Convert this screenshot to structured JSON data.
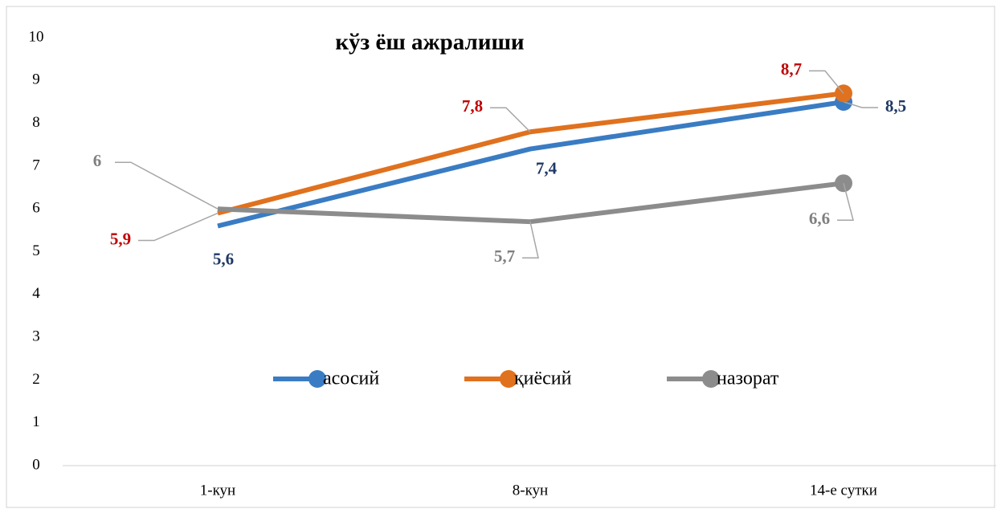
{
  "chart_data": {
    "type": "line",
    "title": "кўз ёш ажралиши",
    "categories": [
      "1-кун",
      "8-кун",
      "14-е сутки"
    ],
    "series": [
      {
        "name": "асосий",
        "color": "#3a7cc3",
        "label_color": "#1f3864",
        "values": [
          5.6,
          7.4,
          8.5
        ],
        "value_labels": [
          "5,6",
          "7,4",
          "8,5"
        ]
      },
      {
        "name": "қиёсий",
        "color": "#e0711e",
        "label_color": "#c00000",
        "values": [
          5.9,
          7.8,
          8.7
        ],
        "value_labels": [
          "5,9",
          "7,8",
          "8,7"
        ]
      },
      {
        "name": "назорат",
        "color": "#8c8c8c",
        "label_color": "#7f7f7f",
        "values": [
          6,
          5.7,
          6.6
        ],
        "value_labels": [
          "6",
          "5,7",
          "6,6"
        ]
      }
    ],
    "ylim": [
      0,
      10
    ],
    "yticks": [
      0,
      1,
      2,
      3,
      4,
      5,
      6,
      7,
      8,
      9,
      10
    ],
    "grid": false,
    "legend": "inside"
  }
}
